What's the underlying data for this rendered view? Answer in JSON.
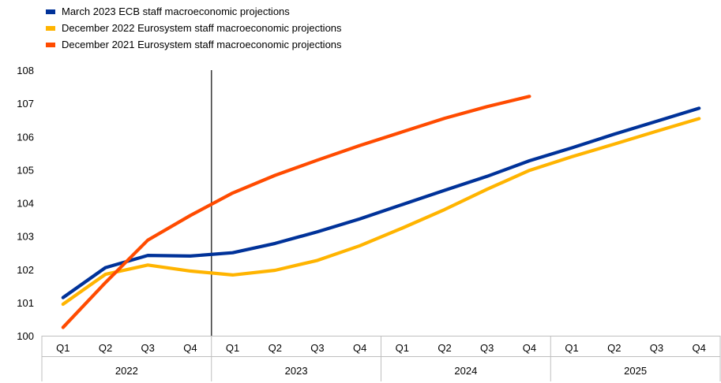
{
  "chart_data": {
    "type": "line",
    "title": "",
    "xlabel": "",
    "ylabel": "",
    "ylim": [
      100,
      108
    ],
    "yticks": [
      100,
      101,
      102,
      103,
      104,
      105,
      106,
      107,
      108
    ],
    "grid": false,
    "legend_position": "top-left",
    "categories": [
      "Q1",
      "Q2",
      "Q3",
      "Q4",
      "Q1",
      "Q2",
      "Q3",
      "Q4",
      "Q1",
      "Q2",
      "Q3",
      "Q4",
      "Q1",
      "Q2",
      "Q3",
      "Q4"
    ],
    "years": [
      "2022",
      "2023",
      "2024",
      "2025"
    ],
    "vertical_marker_after_index": 3,
    "series": [
      {
        "name": "March 2023 ECB staff macroeconomic projections",
        "color": "#003299",
        "values": [
          101.15,
          102.05,
          102.42,
          102.4,
          102.5,
          102.78,
          103.13,
          103.52,
          103.95,
          104.38,
          104.8,
          105.27,
          105.66,
          106.07,
          106.46,
          106.85
        ]
      },
      {
        "name": "December 2022 Eurosystem staff macroeconomic projections",
        "color": "#FFB400",
        "values": [
          100.95,
          101.85,
          102.13,
          101.95,
          101.83,
          101.97,
          102.27,
          102.71,
          103.24,
          103.8,
          104.41,
          104.98,
          105.39,
          105.77,
          106.16,
          106.54
        ]
      },
      {
        "name": "December 2021 Eurosystem staff macroeconomic projections",
        "color": "#FF4B00",
        "values": [
          100.25,
          101.6,
          102.88,
          103.62,
          104.3,
          104.83,
          105.29,
          105.73,
          106.14,
          106.55,
          106.9,
          107.21,
          null,
          null,
          null,
          null
        ]
      }
    ]
  }
}
